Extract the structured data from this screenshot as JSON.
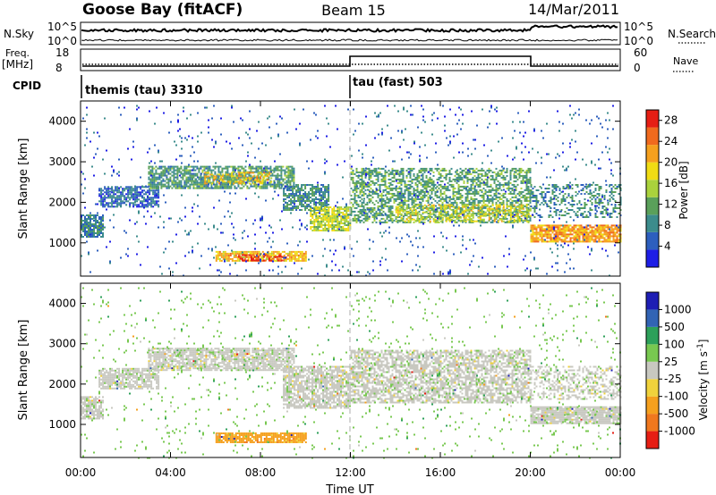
{
  "header": {
    "station": "Goose Bay (fitACF)",
    "beam": "Beam 15",
    "date": "14/Mar/2011"
  },
  "status_panels": {
    "sky_label": "N.Sky",
    "sky_ticks": [
      "10^5",
      "10^0"
    ],
    "search_label": "N.Search",
    "search_ticks": [
      "10^5",
      "10^0"
    ],
    "freq_label_1": "Freq.",
    "freq_label_2": "[MHz]",
    "freq_ticks": [
      "18",
      "8"
    ],
    "nave_label": "Nave",
    "nave_ticks": [
      "60",
      "0"
    ],
    "cpid_label": "CPID",
    "cpid_segments": [
      "themis (tau) 3310",
      "tau (fast) 503"
    ]
  },
  "x_axis": {
    "label": "Time UT",
    "ticks": [
      "00:00",
      "04:00",
      "08:00",
      "12:00",
      "16:00",
      "20:00",
      "00:00"
    ]
  },
  "colors": {
    "power": [
      "#1e1ee6",
      "#2d5fbe",
      "#3c8c8c",
      "#5aa05a",
      "#aad23c",
      "#f0dc14",
      "#f5a01e",
      "#f06a1e",
      "#e61e14"
    ],
    "velocity": [
      "#e61e14",
      "#f0781e",
      "#f5a01e",
      "#f0d23c",
      "#c8c8c0",
      "#78c850",
      "#2da05a",
      "#3264b4",
      "#1e1eb4"
    ]
  },
  "chart_data": [
    {
      "type": "heatmap",
      "name_hint": "power",
      "title": "",
      "xlabel": "",
      "ylabel": "Slant Range [km]",
      "xlim": [
        0,
        24
      ],
      "ylim": [
        180,
        4500
      ],
      "y_ticks": [
        1000,
        2000,
        3000,
        4000
      ],
      "colorbar": {
        "label": "Power [dB]",
        "ticks": [
          4,
          8,
          12,
          16,
          20,
          24,
          28
        ],
        "range": [
          0,
          30
        ]
      },
      "regions": [
        {
          "t0": 0.0,
          "t1": 1.0,
          "r0": 1150,
          "r1": 1700,
          "level": 8,
          "density": 0.8
        },
        {
          "t0": 0.8,
          "t1": 3.5,
          "r0": 1900,
          "r1": 2400,
          "level": 6,
          "density": 0.7
        },
        {
          "t0": 3.0,
          "t1": 9.5,
          "r0": 2350,
          "r1": 2900,
          "level": 10,
          "density": 0.75
        },
        {
          "t0": 5.5,
          "t1": 8.5,
          "r0": 2450,
          "r1": 2750,
          "level": 20,
          "density": 0.4
        },
        {
          "t0": 9.0,
          "t1": 11.0,
          "r0": 1800,
          "r1": 2450,
          "level": 9,
          "density": 0.7
        },
        {
          "t0": 10.2,
          "t1": 12.0,
          "r0": 1300,
          "r1": 1900,
          "level": 16,
          "density": 0.75
        },
        {
          "t0": 6.0,
          "t1": 10.0,
          "r0": 550,
          "r1": 800,
          "level": 20,
          "density": 0.8
        },
        {
          "t0": 7.0,
          "t1": 9.0,
          "r0": 580,
          "r1": 720,
          "level": 28,
          "density": 0.5
        },
        {
          "t0": 12.0,
          "t1": 20.0,
          "r0": 1500,
          "r1": 2850,
          "level": 11,
          "density": 0.55
        },
        {
          "t0": 14.0,
          "t1": 20.0,
          "r0": 1550,
          "r1": 1950,
          "level": 17,
          "density": 0.45
        },
        {
          "t0": 20.0,
          "t1": 24.0,
          "r0": 1050,
          "r1": 1450,
          "level": 22,
          "density": 0.85
        },
        {
          "t0": 20.0,
          "t1": 24.0,
          "r0": 1650,
          "r1": 2450,
          "level": 9,
          "density": 0.35
        },
        {
          "t0": 0.0,
          "t1": 24.0,
          "r0": 180,
          "r1": 4400,
          "level": 5,
          "density": 0.03
        }
      ]
    },
    {
      "type": "heatmap",
      "name_hint": "velocity",
      "title": "",
      "xlabel": "Time UT",
      "ylabel": "Slant Range [km]",
      "xlim": [
        0,
        24
      ],
      "ylim": [
        180,
        4500
      ],
      "y_ticks": [
        1000,
        2000,
        3000,
        4000
      ],
      "colorbar": {
        "label": "Velocity [m s^-1]",
        "ticks": [
          "-1000",
          "-500",
          "-100",
          "-25",
          "25",
          "100",
          "500",
          "1000"
        ]
      },
      "regions": [
        {
          "t0": 0.0,
          "t1": 1.0,
          "r0": 1150,
          "r1": 1700,
          "level": 4,
          "density": 0.85
        },
        {
          "t0": 0.8,
          "t1": 3.5,
          "r0": 1900,
          "r1": 2400,
          "level": 4,
          "density": 0.75
        },
        {
          "t0": 3.0,
          "t1": 9.5,
          "r0": 2350,
          "r1": 2900,
          "level": 4,
          "density": 0.8
        },
        {
          "t0": 9.0,
          "t1": 12.0,
          "r0": 1400,
          "r1": 2450,
          "level": 4,
          "density": 0.75
        },
        {
          "t0": 6.0,
          "t1": 10.0,
          "r0": 550,
          "r1": 800,
          "level": 2,
          "density": 0.85
        },
        {
          "t0": 12.0,
          "t1": 20.0,
          "r0": 1550,
          "r1": 2850,
          "level": 4,
          "density": 0.65
        },
        {
          "t0": 20.0,
          "t1": 24.0,
          "r0": 1050,
          "r1": 1450,
          "level": 4,
          "density": 0.9
        },
        {
          "t0": 20.0,
          "t1": 24.0,
          "r0": 1650,
          "r1": 2450,
          "level": 4,
          "density": 0.4
        },
        {
          "t0": 0.0,
          "t1": 24.0,
          "r0": 180,
          "r1": 4400,
          "level": 5,
          "density": 0.03
        }
      ]
    }
  ]
}
